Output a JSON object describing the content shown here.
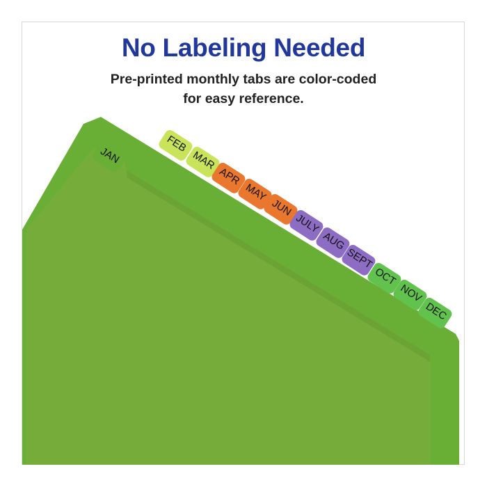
{
  "headline": "No Labeling Needed",
  "subtitle": {
    "line1": "Pre-printed monthly tabs are color-coded",
    "line2": "for easy reference."
  },
  "colors": {
    "headline": "#22379a",
    "folder_back": "#8cc152",
    "folder_main": "#6aaf35",
    "folder_front": "#76ad3a"
  },
  "tabs": [
    {
      "label": "JAN",
      "color": "#6aaf35"
    },
    {
      "label": "FEB",
      "color": "#c9e35a"
    },
    {
      "label": "MAR",
      "color": "#c9e35a"
    },
    {
      "label": "APR",
      "color": "#e9782e"
    },
    {
      "label": "MAY",
      "color": "#e9782e"
    },
    {
      "label": "JUN",
      "color": "#e9782e"
    },
    {
      "label": "JULY",
      "color": "#8d6cc4"
    },
    {
      "label": "AUG",
      "color": "#8d6cc4"
    },
    {
      "label": "SEPT",
      "color": "#8d6cc4"
    },
    {
      "label": "OCT",
      "color": "#62c24e"
    },
    {
      "label": "NOV",
      "color": "#62c24e"
    },
    {
      "label": "DEC",
      "color": "#62c24e"
    }
  ]
}
